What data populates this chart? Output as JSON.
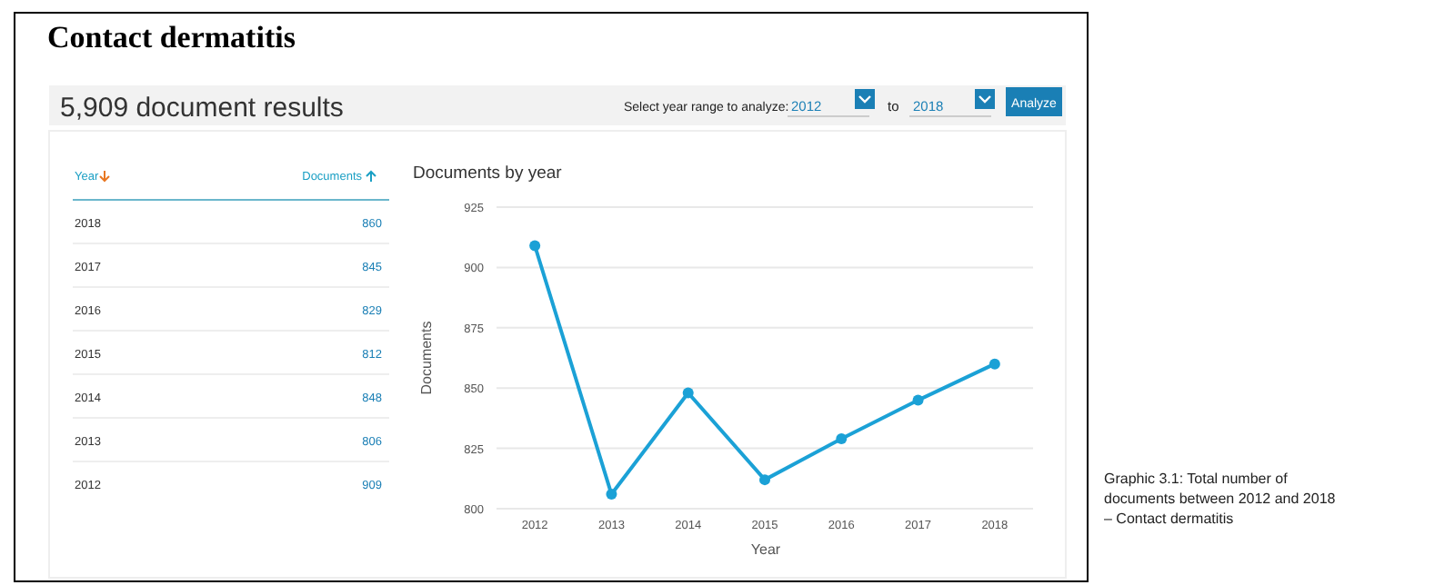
{
  "chart_data": {
    "type": "line",
    "title": "Contact dermatitis",
    "subtitle": "Documents by year",
    "xlabel": "Year",
    "ylabel": "Documents",
    "categories": [
      "2012",
      "2013",
      "2014",
      "2015",
      "2016",
      "2017",
      "2018"
    ],
    "series": [
      {
        "color": "#1ba1d6",
        "values": [
          909,
          806,
          848,
          812,
          829,
          845,
          860
        ]
      }
    ],
    "ylim": [
      800,
      925
    ],
    "yticks": [
      800,
      825,
      850,
      875,
      900,
      925
    ],
    "grid": "y",
    "marker": "circle",
    "line_style": "solid",
    "annotations": [
      "5,909 document results",
      "Select year range to analyze:",
      "2012",
      "to",
      "2018",
      "Analyze",
      "Year",
      "Documents",
      "Graphic 3.1: Total number of documents between 2012 and 2018 – Contact dermatitis",
      "860",
      "845",
      "829",
      "812",
      "848",
      "806",
      "909"
    ]
  }
}
